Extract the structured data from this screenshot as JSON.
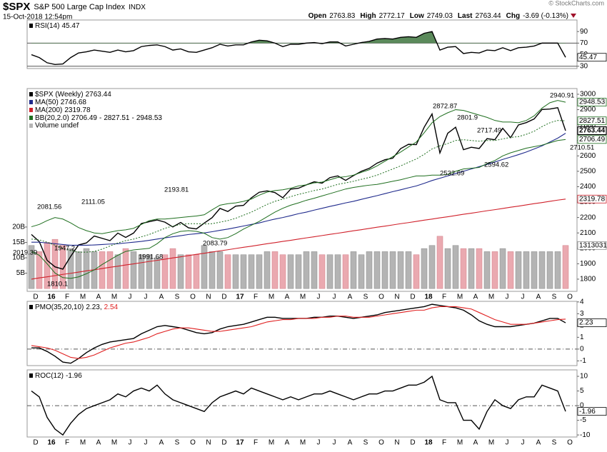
{
  "header": {
    "symbol": "$SPX",
    "name": "S&P 500 Large Cap Index",
    "exchange": "INDX",
    "timestamp": "15-Oct-2018 12:54pm",
    "copyright": "© StockCharts.com",
    "quote": [
      {
        "label": "Open",
        "value": 2763.83
      },
      {
        "label": "High",
        "value": 2772.17
      },
      {
        "label": "Low",
        "value": 2749.03
      },
      {
        "label": "Last",
        "value": 2763.44
      },
      {
        "label": "Chg",
        "value": "-3.69 (-0.13%)"
      }
    ]
  },
  "chart_data": [
    {
      "type": "line",
      "ylim": [
        26,
        110
      ],
      "yticks": [
        90,
        70,
        50,
        30
      ],
      "reference_lines": [
        70,
        30
      ],
      "fill_above": 70,
      "fill_color": "#5b8a5b",
      "series": [
        {
          "name": "RSI(14)",
          "color": "#000000",
          "values": [
            50,
            45,
            36,
            33,
            34,
            45,
            53,
            55,
            58,
            56,
            54,
            58,
            55,
            57,
            64,
            66,
            67,
            64,
            58,
            60,
            55,
            54,
            58,
            62,
            68,
            65,
            67,
            67,
            72,
            75,
            74,
            70,
            64,
            68,
            68,
            70,
            71,
            69,
            72,
            72,
            65,
            68,
            71,
            73,
            77,
            78,
            77,
            80,
            81,
            80,
            87,
            90,
            58,
            63,
            64,
            52,
            54,
            53,
            58,
            57,
            62,
            57,
            62,
            63,
            65,
            70,
            70,
            70,
            45.47
          ],
          "last_value_box": true
        }
      ]
    },
    {
      "type": "line",
      "ylim": [
        1721,
        3037
      ],
      "yticks": [
        3000,
        2900,
        2800,
        2700,
        2600,
        2500,
        2400,
        2300,
        2200,
        2100,
        2000,
        1900,
        1800
      ],
      "categories": [
        "D",
        null,
        "16",
        null,
        "F",
        null,
        "M",
        null,
        "A",
        null,
        "M",
        null,
        "J",
        null,
        "J",
        null,
        "A",
        null,
        "S",
        null,
        "O",
        null,
        "N",
        null,
        "D",
        null,
        "17",
        null,
        "F",
        null,
        "M",
        null,
        "A",
        null,
        "M",
        null,
        "J",
        null,
        "J",
        null,
        "A",
        null,
        "S",
        null,
        "O",
        null,
        "N",
        null,
        "D",
        null,
        "18",
        null,
        "F",
        null,
        "M",
        null,
        "A",
        null,
        "M",
        null,
        "J",
        null,
        "J",
        null,
        "A",
        null,
        "S",
        null,
        "O"
      ],
      "series": [
        {
          "name": "$SPX (Weekly)",
          "color": "#000000",
          "last_value_box": true,
          "values": [
            2090,
            2044,
            1922,
            1880,
            1865,
            1948,
            2022,
            2035,
            2080,
            2065,
            2050,
            2099,
            2071,
            2099,
            2161,
            2173,
            2184,
            2170,
            2139,
            2168,
            2133,
            2126,
            2164,
            2199,
            2259,
            2239,
            2274,
            2279,
            2328,
            2364,
            2373,
            2362,
            2328,
            2384,
            2390,
            2412,
            2432,
            2423,
            2459,
            2470,
            2441,
            2472,
            2500,
            2519,
            2553,
            2575,
            2585,
            2647,
            2675,
            2673,
            2786,
            2872,
            2619,
            2747,
            2786,
            2640,
            2656,
            2648,
            2712,
            2705,
            2779,
            2718,
            2801,
            2816,
            2840,
            2901,
            2904,
            2913,
            2763.44
          ]
        },
        {
          "name": "MA(50)",
          "color": "#1f2a8c",
          "last_value_box": false,
          "values": [
            2040,
            2040,
            2035,
            2030,
            2025,
            2020,
            2020,
            2020,
            2022,
            2025,
            2028,
            2030,
            2035,
            2040,
            2045,
            2052,
            2060,
            2068,
            2075,
            2082,
            2090,
            2095,
            2100,
            2108,
            2117,
            2125,
            2135,
            2145,
            2155,
            2165,
            2178,
            2190,
            2200,
            2212,
            2225,
            2235,
            2248,
            2260,
            2272,
            2283,
            2295,
            2305,
            2318,
            2330,
            2342,
            2355,
            2368,
            2380,
            2393,
            2405,
            2422,
            2440,
            2455,
            2470,
            2486,
            2500,
            2515,
            2530,
            2545,
            2560,
            2577,
            2592,
            2608,
            2625,
            2645,
            2665,
            2690,
            2715,
            2746.68
          ]
        },
        {
          "name": "MA(200)",
          "color": "#d0202a",
          "last_value_box": true,
          "values": [
            1800,
            1808,
            1815,
            1823,
            1831,
            1838,
            1846,
            1854,
            1861,
            1869,
            1877,
            1884,
            1892,
            1899,
            1907,
            1915,
            1922,
            1930,
            1938,
            1945,
            1953,
            1961,
            1968,
            1976,
            1984,
            1991,
            1999,
            2007,
            2014,
            2022,
            2030,
            2037,
            2045,
            2052,
            2060,
            2068,
            2075,
            2083,
            2091,
            2098,
            2106,
            2114,
            2121,
            2129,
            2137,
            2144,
            2152,
            2160,
            2167,
            2175,
            2183,
            2190,
            2198,
            2205,
            2213,
            2221,
            2228,
            2236,
            2244,
            2251,
            2259,
            2267,
            2274,
            2282,
            2290,
            2297,
            2305,
            2313,
            2319.78
          ]
        },
        {
          "name": "BB(20,2.0)",
          "color": "#1e6e1e",
          "last_value_box": true,
          "separator": "-",
          "values": [
            2060,
            2055,
            2040,
            2020,
            2000,
            1985,
            1975,
            1975,
            1980,
            1995,
            2015,
            2035,
            2050,
            2060,
            2075,
            2090,
            2110,
            2130,
            2145,
            2155,
            2160,
            2160,
            2158,
            2160,
            2170,
            2180,
            2195,
            2215,
            2235,
            2260,
            2285,
            2305,
            2320,
            2335,
            2350,
            2362,
            2375,
            2385,
            2400,
            2415,
            2425,
            2435,
            2448,
            2460,
            2475,
            2495,
            2515,
            2535,
            2558,
            2580,
            2610,
            2645,
            2665,
            2680,
            2700,
            2705,
            2700,
            2695,
            2700,
            2700,
            2710,
            2720,
            2725,
            2740,
            2760,
            2790,
            2815,
            2830,
            2827.51
          ],
          "upper": [
            2140,
            2155,
            2180,
            2200,
            2190,
            2165,
            2135,
            2115,
            2100,
            2095,
            2105,
            2115,
            2120,
            2130,
            2155,
            2180,
            2190,
            2190,
            2195,
            2200,
            2205,
            2210,
            2218,
            2250,
            2280,
            2290,
            2295,
            2305,
            2320,
            2345,
            2365,
            2375,
            2380,
            2390,
            2405,
            2412,
            2425,
            2430,
            2445,
            2460,
            2465,
            2475,
            2493,
            2510,
            2535,
            2565,
            2595,
            2625,
            2658,
            2690,
            2750,
            2815,
            2855,
            2880,
            2900,
            2895,
            2880,
            2865,
            2850,
            2830,
            2820,
            2820,
            2815,
            2830,
            2860,
            2910,
            2945,
            2960,
            2948.53
          ],
          "lower": [
            1980,
            1955,
            1900,
            1840,
            1810,
            1805,
            1815,
            1835,
            1860,
            1895,
            1925,
            1955,
            1980,
            1990,
            1995,
            2000,
            2030,
            2070,
            2095,
            2110,
            2115,
            2110,
            2098,
            2070,
            2060,
            2070,
            2095,
            2125,
            2150,
            2175,
            2205,
            2235,
            2260,
            2280,
            2295,
            2312,
            2325,
            2340,
            2355,
            2370,
            2385,
            2395,
            2403,
            2410,
            2415,
            2425,
            2435,
            2445,
            2458,
            2470,
            2470,
            2475,
            2475,
            2480,
            2500,
            2515,
            2520,
            2525,
            2550,
            2570,
            2600,
            2620,
            2635,
            2650,
            2660,
            2670,
            2685,
            2700,
            2706.49
          ]
        }
      ],
      "volume": {
        "name": "Volume undef",
        "up_color": "#b4b4b4",
        "down_color": "#eaa9b0",
        "label": "1313031",
        "values": [
          14,
          12,
          15,
          16,
          14,
          13,
          12,
          13,
          12,
          12,
          12,
          11,
          13,
          12,
          11,
          11,
          10,
          11,
          13,
          11,
          11,
          11,
          14,
          12,
          12,
          11,
          11,
          11,
          11,
          11,
          12,
          12,
          11,
          11,
          11,
          12,
          12,
          11,
          11,
          11,
          11,
          12,
          11,
          12,
          12,
          12,
          12,
          12,
          12,
          11,
          13,
          14,
          17,
          13,
          14,
          13,
          13,
          13,
          12,
          12,
          13,
          12,
          12,
          12,
          12,
          12,
          12,
          12,
          14
        ]
      },
      "vlim": [
        -0.9,
        65
      ],
      "vticks": [
        {
          "value": 20,
          "label": "20B"
        },
        {
          "value": 15,
          "label": "15B"
        },
        {
          "value": 10,
          "label": "10B"
        },
        {
          "value": 5,
          "label": "5B"
        }
      ],
      "annotations": [
        2081.56,
        2019.39,
        1947.2,
        1810.1,
        2111.05,
        1991.68,
        2193.81,
        2083.79,
        2872.87,
        2801.9,
        2717.49,
        2532.69,
        2594.62,
        2940.91,
        2710.51
      ]
    },
    {
      "type": "line",
      "ylim": [
        -1.4,
        4.05
      ],
      "yticks": [
        4,
        3,
        2,
        1,
        0,
        -1
      ],
      "reference_lines": [
        0
      ],
      "separator": ",",
      "series": [
        {
          "name": "PMO(35,20,10)",
          "color": "#000000",
          "last_value_box": true,
          "values": [
            0.1,
            0.1,
            -0.2,
            -0.6,
            -1.1,
            -1.2,
            -0.8,
            -0.3,
            0.1,
            0.4,
            0.6,
            0.7,
            0.8,
            0.9,
            1.3,
            1.6,
            1.9,
            2.0,
            1.9,
            1.8,
            1.6,
            1.4,
            1.3,
            1.4,
            1.7,
            1.9,
            2.0,
            2.1,
            2.3,
            2.5,
            2.7,
            2.7,
            2.6,
            2.6,
            2.6,
            2.6,
            2.7,
            2.7,
            2.8,
            2.8,
            2.7,
            2.6,
            2.7,
            2.8,
            2.9,
            3.1,
            3.2,
            3.3,
            3.4,
            3.5,
            3.6,
            3.8,
            3.7,
            3.6,
            3.5,
            3.3,
            2.9,
            2.4,
            2.1,
            1.9,
            1.9,
            1.9,
            2.0,
            2.1,
            2.2,
            2.4,
            2.6,
            2.6,
            2.23
          ]
        },
        {
          "color": "#e02020",
          "last_value_box": false,
          "values": [
            0.3,
            0.2,
            0.1,
            -0.1,
            -0.4,
            -0.7,
            -0.8,
            -0.7,
            -0.5,
            -0.2,
            0.1,
            0.3,
            0.5,
            0.6,
            0.8,
            1.0,
            1.3,
            1.5,
            1.7,
            1.8,
            1.8,
            1.7,
            1.6,
            1.5,
            1.5,
            1.6,
            1.7,
            1.8,
            1.9,
            2.1,
            2.3,
            2.4,
            2.5,
            2.5,
            2.6,
            2.6,
            2.6,
            2.7,
            2.7,
            2.8,
            2.8,
            2.7,
            2.7,
            2.7,
            2.8,
            2.9,
            3.0,
            3.1,
            3.2,
            3.3,
            3.3,
            3.5,
            3.6,
            3.6,
            3.6,
            3.5,
            3.4,
            3.1,
            2.8,
            2.5,
            2.3,
            2.1,
            2.1,
            2.1,
            2.2,
            2.3,
            2.4,
            2.5,
            2.54
          ]
        }
      ]
    },
    {
      "type": "line",
      "ylim": [
        -10.7,
        12.2
      ],
      "yticks": [
        10,
        5,
        0,
        -5,
        -10
      ],
      "reference_lines": [
        0
      ],
      "categories": [
        "D",
        null,
        "16",
        null,
        "F",
        null,
        "M",
        null,
        "A",
        null,
        "M",
        null,
        "J",
        null,
        "J",
        null,
        "A",
        null,
        "S",
        null,
        "O",
        null,
        "N",
        null,
        "D",
        null,
        "17",
        null,
        "F",
        null,
        "M",
        null,
        "A",
        null,
        "M",
        null,
        "J",
        null,
        "J",
        null,
        "A",
        null,
        "S",
        null,
        "O",
        null,
        "N",
        null,
        "D",
        null,
        "18",
        null,
        "F",
        null,
        "M",
        null,
        "A",
        null,
        "M",
        null,
        "J",
        null,
        "J",
        null,
        "A",
        null,
        "S",
        null,
        "O"
      ],
      "series": [
        {
          "name": "ROC(12)",
          "color": "#000000",
          "last_value_box": true,
          "values": [
            5,
            3,
            -4,
            -8,
            -10,
            -6,
            -3,
            -1,
            0,
            1,
            2,
            4,
            3,
            5,
            6,
            5,
            7,
            4,
            2,
            1,
            0,
            -1,
            -2,
            1,
            3,
            4,
            5,
            4,
            6,
            5,
            4,
            3,
            2,
            3,
            2,
            3,
            4,
            4,
            5,
            4,
            3,
            2,
            3,
            4,
            4,
            5,
            5,
            6,
            7,
            7,
            8,
            10,
            2,
            1,
            1,
            -5,
            -5,
            -8,
            -2,
            2,
            0,
            -1,
            2,
            3,
            3,
            7,
            6,
            5,
            -1.96
          ]
        }
      ]
    }
  ]
}
